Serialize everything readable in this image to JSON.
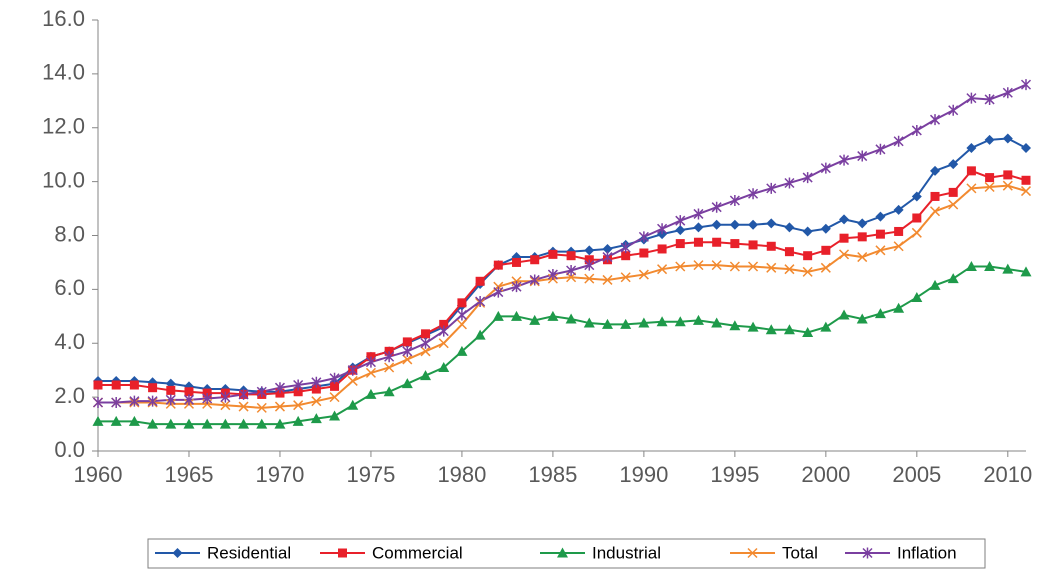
{
  "chart_data": {
    "type": "line",
    "x": [
      1960,
      1961,
      1962,
      1963,
      1964,
      1965,
      1966,
      1967,
      1968,
      1969,
      1970,
      1971,
      1972,
      1973,
      1974,
      1975,
      1976,
      1977,
      1978,
      1979,
      1980,
      1981,
      1982,
      1983,
      1984,
      1985,
      1986,
      1987,
      1988,
      1989,
      1990,
      1991,
      1992,
      1993,
      1994,
      1995,
      1996,
      1997,
      1998,
      1999,
      2000,
      2001,
      2002,
      2003,
      2004,
      2005,
      2006,
      2007,
      2008,
      2009,
      2010,
      2011
    ],
    "series": [
      {
        "name": "Residential",
        "color": "#2258a8",
        "marker": "diamond",
        "values": [
          2.6,
          2.6,
          2.6,
          2.55,
          2.5,
          2.4,
          2.3,
          2.3,
          2.25,
          2.2,
          2.2,
          2.3,
          2.4,
          2.5,
          3.1,
          3.5,
          3.7,
          4.0,
          4.3,
          4.6,
          5.4,
          6.2,
          6.9,
          7.2,
          7.2,
          7.4,
          7.4,
          7.45,
          7.5,
          7.65,
          7.85,
          8.05,
          8.2,
          8.3,
          8.4,
          8.4,
          8.4,
          8.45,
          8.3,
          8.15,
          8.25,
          8.6,
          8.45,
          8.7,
          8.95,
          9.45,
          10.4,
          10.65,
          11.25,
          11.55,
          11.6,
          11.25
        ]
      },
      {
        "name": "Commercial",
        "color": "#e8202a",
        "marker": "square",
        "values": [
          2.45,
          2.45,
          2.45,
          2.35,
          2.25,
          2.2,
          2.15,
          2.15,
          2.1,
          2.1,
          2.15,
          2.2,
          2.3,
          2.4,
          3.0,
          3.5,
          3.7,
          4.05,
          4.35,
          4.7,
          5.5,
          6.3,
          6.9,
          7.0,
          7.1,
          7.3,
          7.25,
          7.1,
          7.1,
          7.25,
          7.35,
          7.5,
          7.7,
          7.75,
          7.75,
          7.7,
          7.65,
          7.6,
          7.4,
          7.25,
          7.45,
          7.9,
          7.95,
          8.05,
          8.15,
          8.65,
          9.45,
          9.6,
          10.4,
          10.15,
          10.25,
          10.05
        ]
      },
      {
        "name": "Industrial",
        "color": "#1e9a4a",
        "marker": "triangle",
        "values": [
          1.1,
          1.1,
          1.1,
          1.0,
          1.0,
          1.0,
          1.0,
          1.0,
          1.0,
          1.0,
          1.0,
          1.1,
          1.2,
          1.3,
          1.7,
          2.1,
          2.2,
          2.5,
          2.8,
          3.1,
          3.7,
          4.3,
          5.0,
          5.0,
          4.85,
          5.0,
          4.9,
          4.75,
          4.7,
          4.7,
          4.75,
          4.8,
          4.8,
          4.85,
          4.75,
          4.65,
          4.6,
          4.5,
          4.5,
          4.4,
          4.6,
          5.05,
          4.9,
          5.1,
          5.3,
          5.7,
          6.15,
          6.4,
          6.85,
          6.85,
          6.75,
          6.65
        ]
      },
      {
        "name": "Total",
        "color": "#f28a30",
        "marker": "x",
        "values": [
          1.8,
          1.8,
          1.8,
          1.8,
          1.75,
          1.75,
          1.75,
          1.7,
          1.65,
          1.6,
          1.65,
          1.7,
          1.85,
          2.0,
          2.6,
          2.9,
          3.1,
          3.4,
          3.7,
          4.0,
          4.7,
          5.5,
          6.1,
          6.3,
          6.3,
          6.4,
          6.45,
          6.4,
          6.35,
          6.45,
          6.55,
          6.75,
          6.85,
          6.9,
          6.9,
          6.85,
          6.85,
          6.8,
          6.75,
          6.65,
          6.8,
          7.3,
          7.2,
          7.45,
          7.6,
          8.1,
          8.9,
          9.15,
          9.75,
          9.8,
          9.85,
          9.65
        ]
      },
      {
        "name": "Inflation",
        "color": "#7a3fa0",
        "marker": "star",
        "values": [
          1.8,
          1.8,
          1.85,
          1.85,
          1.9,
          1.9,
          1.95,
          2.0,
          2.1,
          2.2,
          2.35,
          2.45,
          2.55,
          2.7,
          3.0,
          3.3,
          3.5,
          3.7,
          4.0,
          4.45,
          5.05,
          5.55,
          5.9,
          6.1,
          6.35,
          6.55,
          6.7,
          6.9,
          7.2,
          7.55,
          7.95,
          8.25,
          8.55,
          8.8,
          9.05,
          9.3,
          9.55,
          9.75,
          9.95,
          10.15,
          10.5,
          10.8,
          10.95,
          11.2,
          11.5,
          11.9,
          12.3,
          12.65,
          13.1,
          13.05,
          13.3,
          13.6
        ]
      }
    ],
    "xlim": [
      1960,
      2011
    ],
    "xticks": [
      1960,
      1965,
      1970,
      1975,
      1980,
      1985,
      1990,
      1995,
      2000,
      2005,
      2010
    ],
    "ylim": [
      0,
      16
    ],
    "yticks": [
      {
        "value": 0,
        "label": "0.0"
      },
      {
        "value": 2,
        "label": "2.0"
      },
      {
        "value": 4,
        "label": "4.0"
      },
      {
        "value": 6,
        "label": "6.0"
      },
      {
        "value": 8,
        "label": "8.0"
      },
      {
        "value": 10,
        "label": "10.0"
      },
      {
        "value": 12,
        "label": "12.0"
      },
      {
        "value": 14,
        "label": "14.0"
      },
      {
        "value": 16,
        "label": "16.0"
      }
    ],
    "legend": "bottom"
  }
}
